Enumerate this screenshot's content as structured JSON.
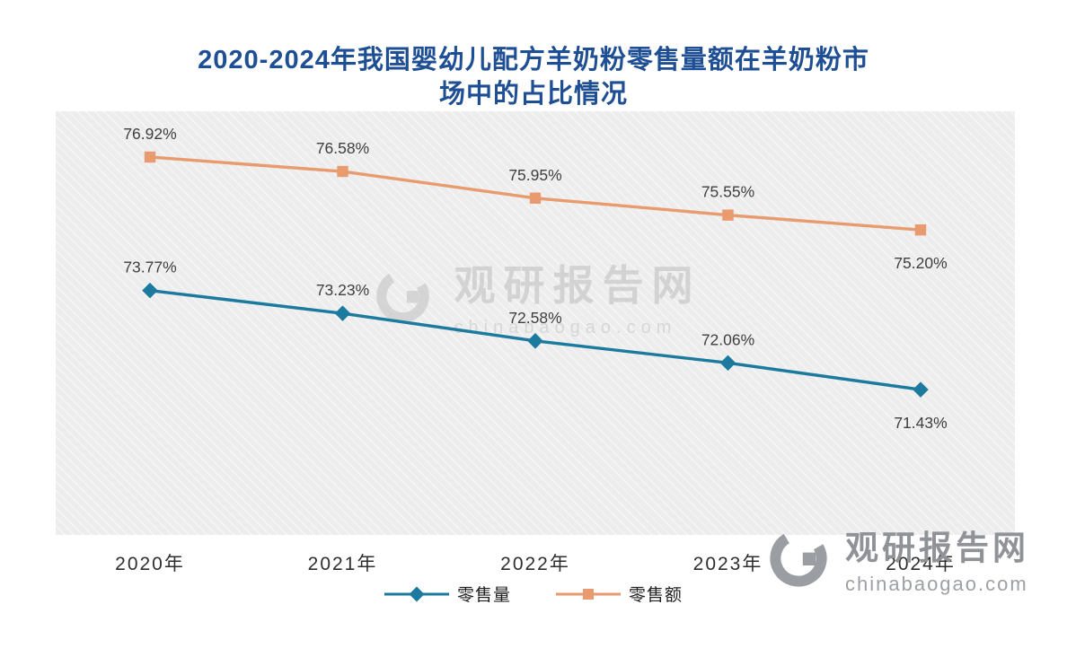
{
  "title": {
    "lines": [
      "2020-2024年我国婴幼儿配方羊奶粉零售量额在羊奶粉市",
      "场中的占比情况"
    ],
    "color": "#1e4e93"
  },
  "chart_data": {
    "type": "line",
    "title": "2020-2024年我国婴幼儿配方羊奶粉零售量额在羊奶粉市场中的占比情况",
    "categories": [
      "2020年",
      "2021年",
      "2022年",
      "2023年",
      "2024年"
    ],
    "series": [
      {
        "key": "retail-value",
        "name": "零售额",
        "marker": "square",
        "color": "#e89b6f",
        "values": [
          76.92,
          76.58,
          75.95,
          75.55,
          75.2
        ]
      },
      {
        "key": "retail-volume",
        "name": "零售量",
        "marker": "diamond",
        "color": "#1b7a9e",
        "values": [
          73.77,
          73.23,
          72.58,
          72.06,
          71.43
        ]
      }
    ],
    "xlabel": "",
    "ylabel": "",
    "ylim": [
      68,
      78
    ],
    "grid": false,
    "data_labels": true,
    "label_suffix": "%",
    "legend_position": "bottom"
  },
  "legend": {
    "items": [
      {
        "key": "retail-volume",
        "label": "零售量",
        "color": "#1b7a9e",
        "marker": "diamond"
      },
      {
        "key": "retail-value",
        "label": "零售额",
        "color": "#e89b6f",
        "marker": "square"
      }
    ]
  },
  "watermarks": {
    "center": {
      "brand": "观研报告网",
      "domain": "chinabaogao.com"
    },
    "corner": {
      "brand": "观研报告网",
      "domain": "chinabaogao.com"
    }
  }
}
